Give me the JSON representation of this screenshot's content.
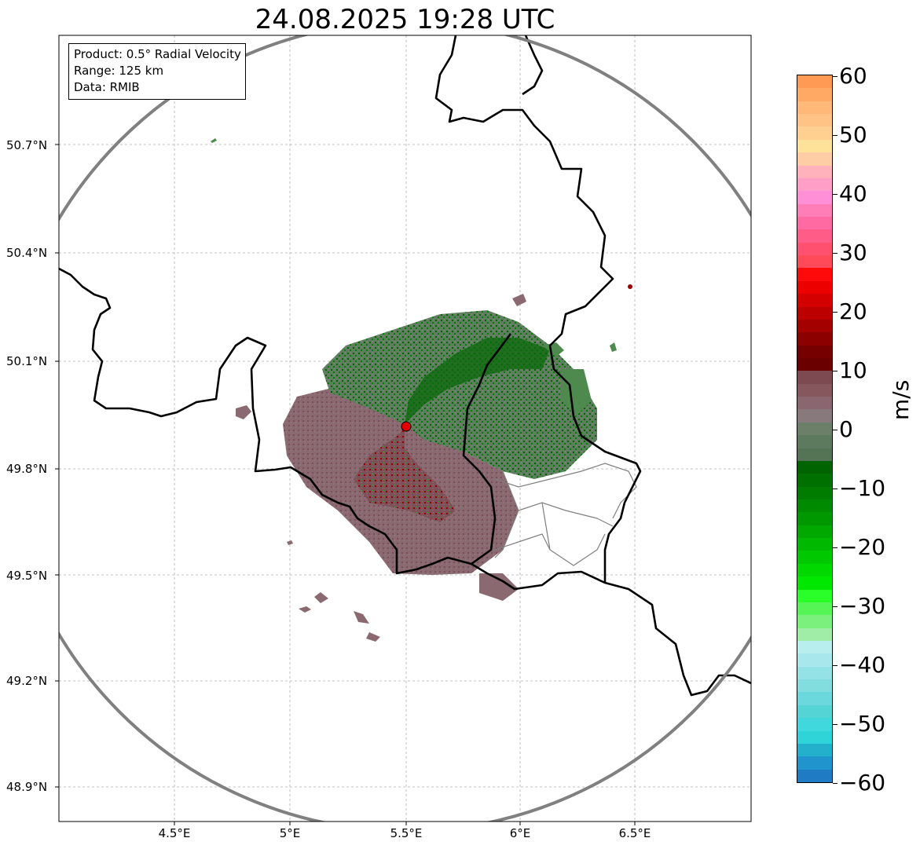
{
  "title": "24.08.2025 19:28 UTC",
  "info": {
    "product": "Product: 0.5° Radial Velocity",
    "range": "Range: 125 km",
    "data": "Data: RMIB"
  },
  "y_ticks": [
    "50.7°N",
    "50.4°N",
    "50.1°N",
    "49.8°N",
    "49.5°N",
    "49.2°N",
    "48.9°N"
  ],
  "x_ticks": [
    "4.5°E",
    "5°E",
    "5.5°E",
    "6°E",
    "6.5°E"
  ],
  "colorbar": {
    "unit": "m/s",
    "ticks": [
      "60",
      "50",
      "40",
      "30",
      "20",
      "10",
      "0",
      "−10",
      "−20",
      "−30",
      "−40",
      "−50",
      "−60"
    ],
    "colors": [
      "#ff9a55",
      "#ffa965",
      "#ffb877",
      "#ffc485",
      "#ffd08f",
      "#ffe29a",
      "#ffcda5",
      "#ffb1bc",
      "#ff9fc8",
      "#ff8fd6",
      "#ff7eb8",
      "#ff6aa3",
      "#ff5d88",
      "#ff5070",
      "#ff4a5a",
      "#ff0a0a",
      "#ec0000",
      "#d40000",
      "#bc0000",
      "#a40000",
      "#8c0000",
      "#760000",
      "#6a0000",
      "#7c4a50",
      "#86585e",
      "#8a6670",
      "#887a7c",
      "#6c7f68",
      "#5e7a5e",
      "#557455",
      "#006400",
      "#007000",
      "#007c00",
      "#008a00",
      "#009800",
      "#00a800",
      "#00b800",
      "#00c800",
      "#00d800",
      "#00e800",
      "#2aff2a",
      "#55f555",
      "#7cf07c",
      "#a0eda8",
      "#b8eeee",
      "#a8e8ec",
      "#95e2e6",
      "#82ddde",
      "#6ad8dc",
      "#55d4d6",
      "#40d8dc",
      "#2ed4d8",
      "#22b0cc",
      "#2094cc",
      "#1f7cc4"
    ]
  },
  "radar_site": {
    "lon": 5.5,
    "lat": 49.91
  },
  "range_ring_radius_km": 125,
  "axes_extent": {
    "lon": [
      4.0,
      7.0
    ],
    "lat": [
      48.8,
      51.0
    ]
  },
  "colors": {
    "border": "#000000",
    "ring": "#808080",
    "district": "#808080",
    "grid": "#b0b0b0",
    "site_marker": "#e00000",
    "echo_red": "#7a3a40",
    "echo_mauve": "#8a6a70",
    "echo_green_gray": "#5f7d5f",
    "echo_green": "#006400"
  }
}
